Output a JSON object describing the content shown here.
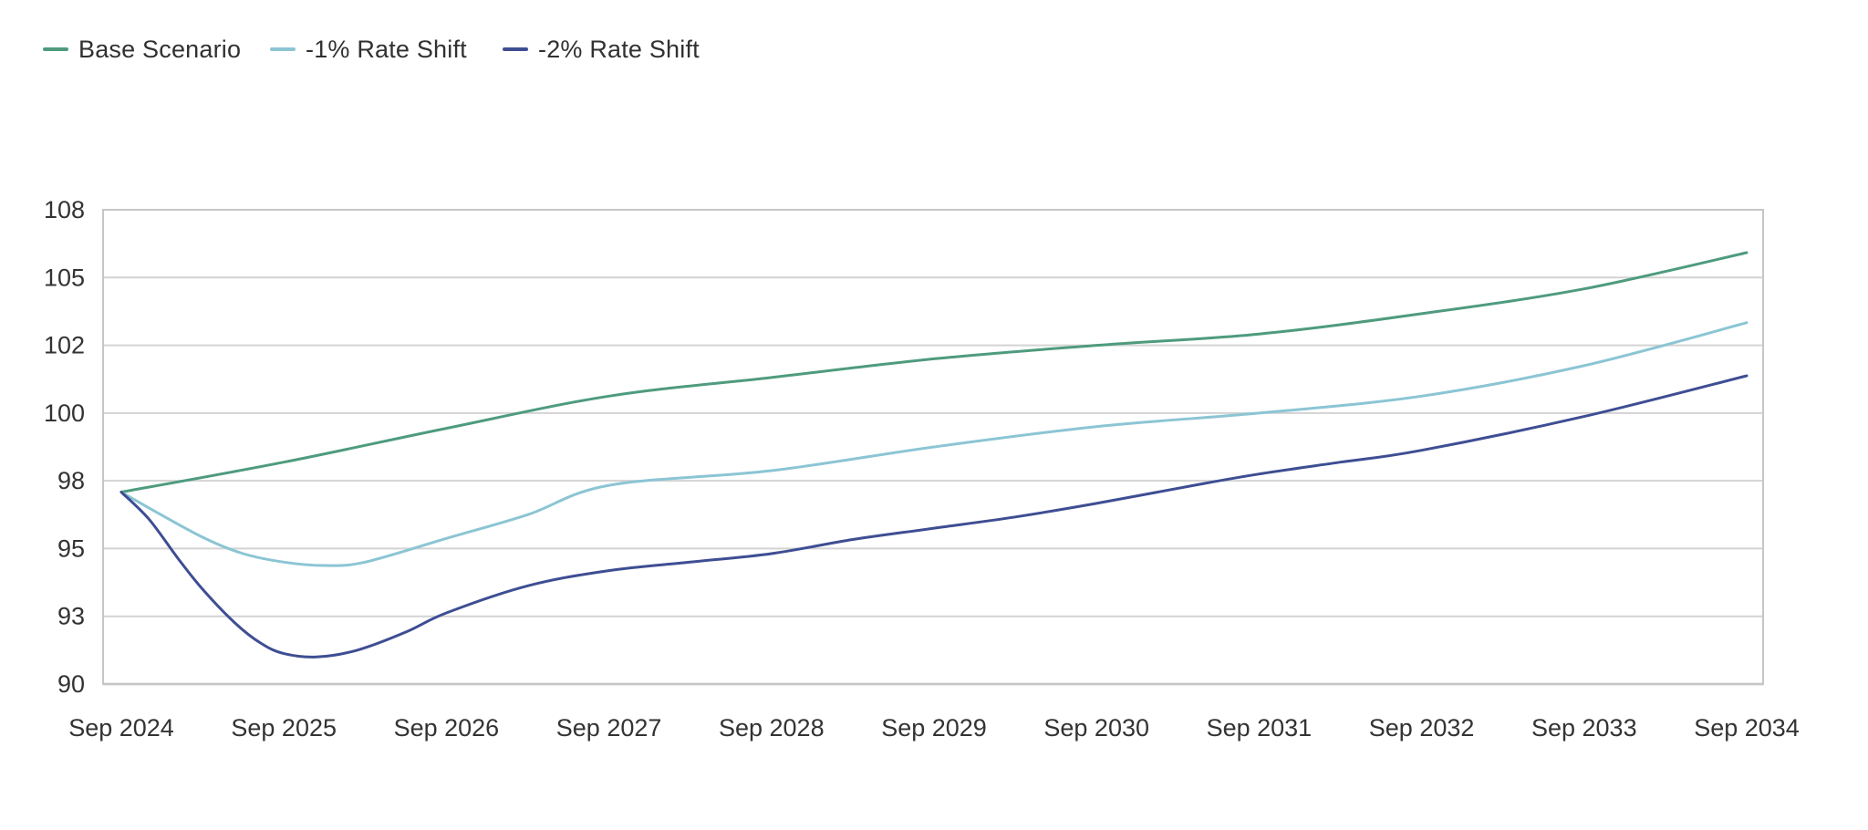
{
  "legend": {
    "items": [
      {
        "label": "Base Scenario",
        "color": "#4E9B7E"
      },
      {
        "label": "-1% Rate Shift",
        "color": "#8BC5D4"
      },
      {
        "label": "-2% Rate Shift",
        "color": "#3E4E93"
      }
    ]
  },
  "chart_data": {
    "type": "line",
    "title": "",
    "x_tick_labels": [
      "Sep 2024",
      "Sep 2025",
      "Sep 2026",
      "Sep 2027",
      "Sep 2028",
      "Sep 2029",
      "Sep 2030",
      "Sep 2031",
      "Sep 2032",
      "Sep 2033",
      "Sep 2034"
    ],
    "y_tick_values": [
      108,
      105,
      102,
      100,
      98,
      95,
      93,
      90
    ],
    "y_ticks_evenly_spaced": true,
    "x_unit": "years after Sep 2024 (0 = Sep 2024, 10 = Sep 2034)",
    "grid": "horizontal gridlines only, full plot border box",
    "legend_position": "top-left",
    "series": [
      {
        "name": "Base Scenario",
        "color": "#4E9B7E",
        "points": [
          [
            0,
            97.5
          ],
          [
            1,
            98.55
          ],
          [
            2,
            99.55
          ],
          [
            3,
            100.5
          ],
          [
            4,
            101.05
          ],
          [
            5,
            101.6
          ],
          [
            6,
            102.0
          ],
          [
            7,
            102.5
          ],
          [
            8,
            103.4
          ],
          [
            9,
            104.5
          ],
          [
            10,
            106.1
          ]
        ]
      },
      {
        "name": "-1% Rate Shift",
        "color": "#8BC5D4",
        "points": [
          [
            0,
            97.5
          ],
          [
            0.17,
            96.8
          ],
          [
            0.5,
            95.5
          ],
          [
            0.75,
            94.85
          ],
          [
            1,
            94.6
          ],
          [
            1.25,
            94.5
          ],
          [
            1.5,
            94.6
          ],
          [
            2,
            95.45
          ],
          [
            2.5,
            96.5
          ],
          [
            3,
            97.8
          ],
          [
            4,
            98.3
          ],
          [
            5,
            99.0
          ],
          [
            6,
            99.6
          ],
          [
            7,
            100.0
          ],
          [
            8,
            100.5
          ],
          [
            9,
            101.4
          ],
          [
            10,
            103.0
          ]
        ]
      },
      {
        "name": "-2% Rate Shift",
        "color": "#3E4E93",
        "points": [
          [
            0,
            97.5
          ],
          [
            0.17,
            96.3
          ],
          [
            0.35,
            94.7
          ],
          [
            0.5,
            93.8
          ],
          [
            0.7,
            92.7
          ],
          [
            0.86,
            91.8
          ],
          [
            1,
            91.35
          ],
          [
            1.2,
            91.2
          ],
          [
            1.45,
            91.5
          ],
          [
            1.75,
            92.3
          ],
          [
            2,
            93.1
          ],
          [
            2.5,
            93.9
          ],
          [
            3,
            94.35
          ],
          [
            3.5,
            94.6
          ],
          [
            4,
            94.85
          ],
          [
            4.5,
            95.4
          ],
          [
            5,
            95.9
          ],
          [
            5.5,
            96.4
          ],
          [
            6,
            97.0
          ],
          [
            6.6,
            97.8
          ],
          [
            7,
            98.2
          ],
          [
            7.5,
            98.55
          ],
          [
            8,
            98.9
          ],
          [
            9,
            99.9
          ],
          [
            10,
            101.1
          ]
        ]
      }
    ]
  },
  "colors": {
    "background": "#FFFFFF",
    "gridline": "#D3D3D3",
    "plot_border": "#C6C6C6",
    "axis_bottom_line": "#A9A9A9",
    "label_text": "#333333"
  }
}
